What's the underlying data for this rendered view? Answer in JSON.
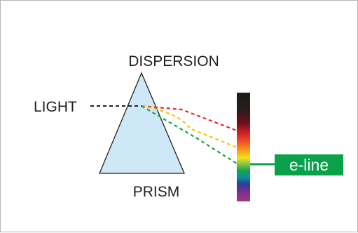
{
  "diagram": {
    "title": "DISPERSION",
    "prism_label": "PRISM",
    "light_label": "LIGHT",
    "eline_label": "e-line"
  },
  "colors": {
    "prism_fill": "#cfe8f7",
    "stroke": "#231f20",
    "ray_red": "#e8262b",
    "ray_yellow": "#f5c518",
    "ray_green": "#1aa64a",
    "eline_bg": "#0aa14b",
    "spectrum": [
      "#231f20",
      "#3a1a1a",
      "#8a1420",
      "#e8262b",
      "#f47b20",
      "#f5c518",
      "#8cc63f",
      "#1aa64a",
      "#0e8fa6",
      "#2e3192",
      "#7a2e8e",
      "#b23a8a",
      "#5a2a5a"
    ]
  },
  "icons": {
    "prism": "triangle-prism-icon",
    "spectrum": "spectrum-bar-icon"
  }
}
